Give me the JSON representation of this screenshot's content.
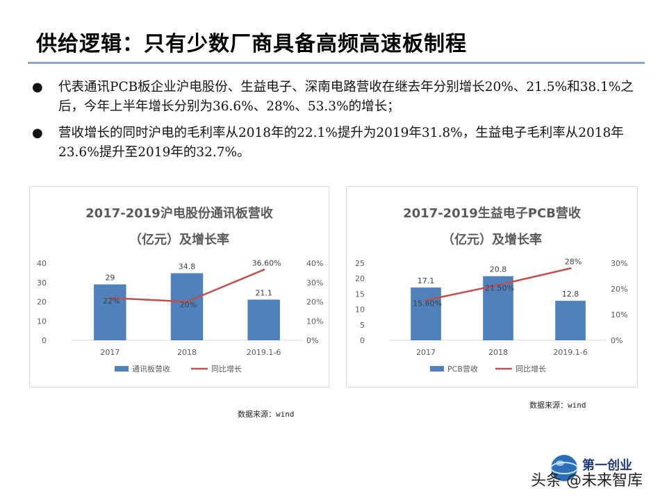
{
  "title": "供给逻辑：只有少数厂商具备高频高速板制程",
  "bullets": [
    "代表通讯PCB板企业沪电股份、生益电子、深南电路营收在继去年分别增长20%、21.5%和38.1%之后，今年上半年增长分别为36.6%、28%、53.3%的增长；",
    "营收增长的同时沪电的毛利率从2018年的22.1%提升为2019年31.8%，生益电子毛利率从2018年23.6%提升至2019年的32.7%。"
  ],
  "bullet_marker": "●",
  "chart_data": [
    {
      "type": "bar",
      "title": "2017-2019沪电股份通讯板营收",
      "subtitle": "（亿元）及增长率",
      "categories": [
        "2017",
        "2018",
        "2019.1-6"
      ],
      "series": [
        {
          "name": "通讯板营收",
          "kind": "bar",
          "axis": "left",
          "values": [
            29,
            34.8,
            21.1
          ],
          "labels": [
            "29",
            "34.8",
            "21.1"
          ],
          "color": "#4f81bd"
        },
        {
          "name": "同比增长",
          "kind": "line",
          "axis": "right",
          "values": [
            0.22,
            0.2,
            0.366
          ],
          "labels": [
            "22%",
            "20%",
            "36.60%"
          ],
          "color": "#c0504d"
        }
      ],
      "ylim": [
        0,
        40
      ],
      "yticks": [
        "0",
        "10",
        "20",
        "30",
        "40"
      ],
      "y2lim": [
        0,
        0.4
      ],
      "y2ticks": [
        "0%",
        "10%",
        "20%",
        "30%",
        "40%"
      ],
      "legend": "bottom",
      "grid": false
    },
    {
      "type": "bar",
      "title": "2017-2019生益电子PCB营收",
      "subtitle": "（亿元）及增长率",
      "categories": [
        "2017",
        "2018",
        "2019.1-6"
      ],
      "series": [
        {
          "name": "PCB营收",
          "kind": "bar",
          "axis": "left",
          "values": [
            17.1,
            20.8,
            12.8
          ],
          "labels": [
            "17.1",
            "20.8",
            "12.8"
          ],
          "color": "#4f81bd"
        },
        {
          "name": "同比增长",
          "kind": "line",
          "axis": "right",
          "values": [
            0.156,
            0.215,
            0.28
          ],
          "labels": [
            "15.60%",
            "21.50%",
            "28%"
          ],
          "color": "#c0504d"
        }
      ],
      "ylim": [
        0,
        25
      ],
      "yticks": [
        "0",
        "5",
        "10",
        "15",
        "20",
        "25"
      ],
      "y2lim": [
        0,
        0.3
      ],
      "y2ticks": [
        "0%",
        "10%",
        "20%",
        "30%"
      ],
      "legend": "bottom",
      "grid": false
    }
  ],
  "sources": [
    "数据来源：wind",
    "数据来源：wind"
  ],
  "watermark": {
    "text": "头条 @未来智库",
    "brand": "第一创业"
  }
}
